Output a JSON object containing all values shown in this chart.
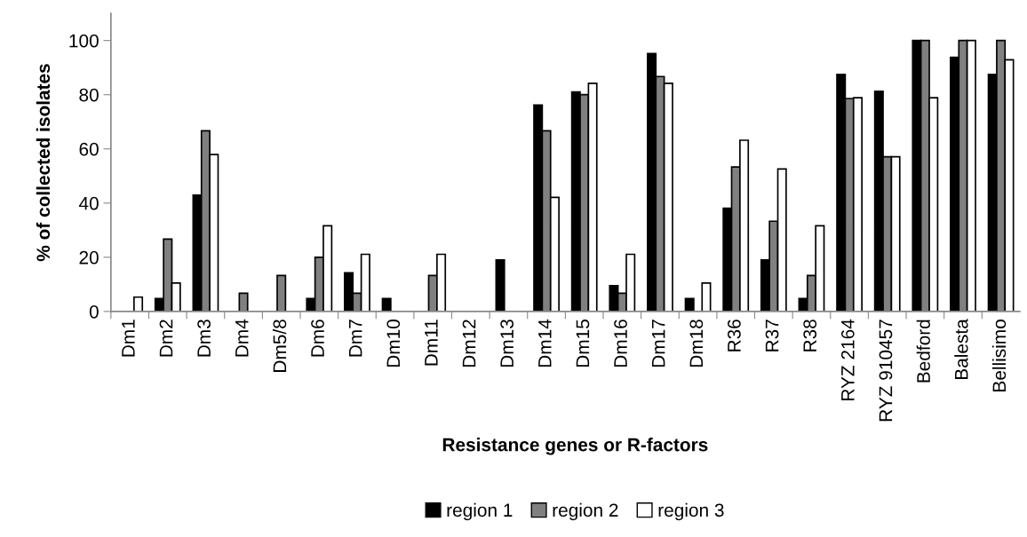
{
  "chart_data": {
    "type": "bar",
    "xlabel": "Resistance genes or R-factors",
    "ylabel": "% of collected isolates",
    "categories": [
      "Dm1",
      "Dm2",
      "Dm3",
      "Dm4",
      "Dm5/8",
      "Dm6",
      "Dm7",
      "Dm10",
      "Dm11",
      "Dm12",
      "Dm13",
      "Dm14",
      "Dm15",
      "Dm16",
      "Dm17",
      "Dm18",
      "R36",
      "R37",
      "R38",
      "RYZ 2164",
      "RYZ 910457",
      "Bedford",
      "Balesta",
      "Bellisimo"
    ],
    "series": [
      {
        "name": "region 1",
        "color": "#000000",
        "values": [
          0,
          4.8,
          42.9,
          0,
          0,
          4.8,
          14.3,
          4.8,
          0,
          0,
          19.0,
          76.2,
          81.0,
          9.5,
          95.2,
          4.8,
          38.1,
          19.0,
          4.8,
          87.5,
          81.3,
          100,
          93.8,
          87.5
        ]
      },
      {
        "name": "region 2",
        "color": "#808080",
        "values": [
          0,
          26.7,
          66.7,
          6.7,
          13.3,
          20.0,
          6.7,
          0,
          13.3,
          0,
          0,
          66.7,
          80.0,
          6.7,
          86.7,
          0,
          53.3,
          33.3,
          13.3,
          78.6,
          57.1,
          100,
          100,
          100
        ]
      },
      {
        "name": "region 3",
        "color": "#ffffff",
        "values": [
          5.3,
          10.5,
          57.9,
          0,
          0,
          31.6,
          21.1,
          0,
          21.1,
          0,
          0,
          42.1,
          84.2,
          21.1,
          84.2,
          10.5,
          63.2,
          52.6,
          31.6,
          78.9,
          57.1,
          78.9,
          100,
          92.9
        ]
      }
    ],
    "ylim": [
      0,
      110
    ],
    "yticks": [
      0,
      20,
      40,
      60,
      80,
      100
    ],
    "grid": false,
    "legend": "bottom"
  }
}
